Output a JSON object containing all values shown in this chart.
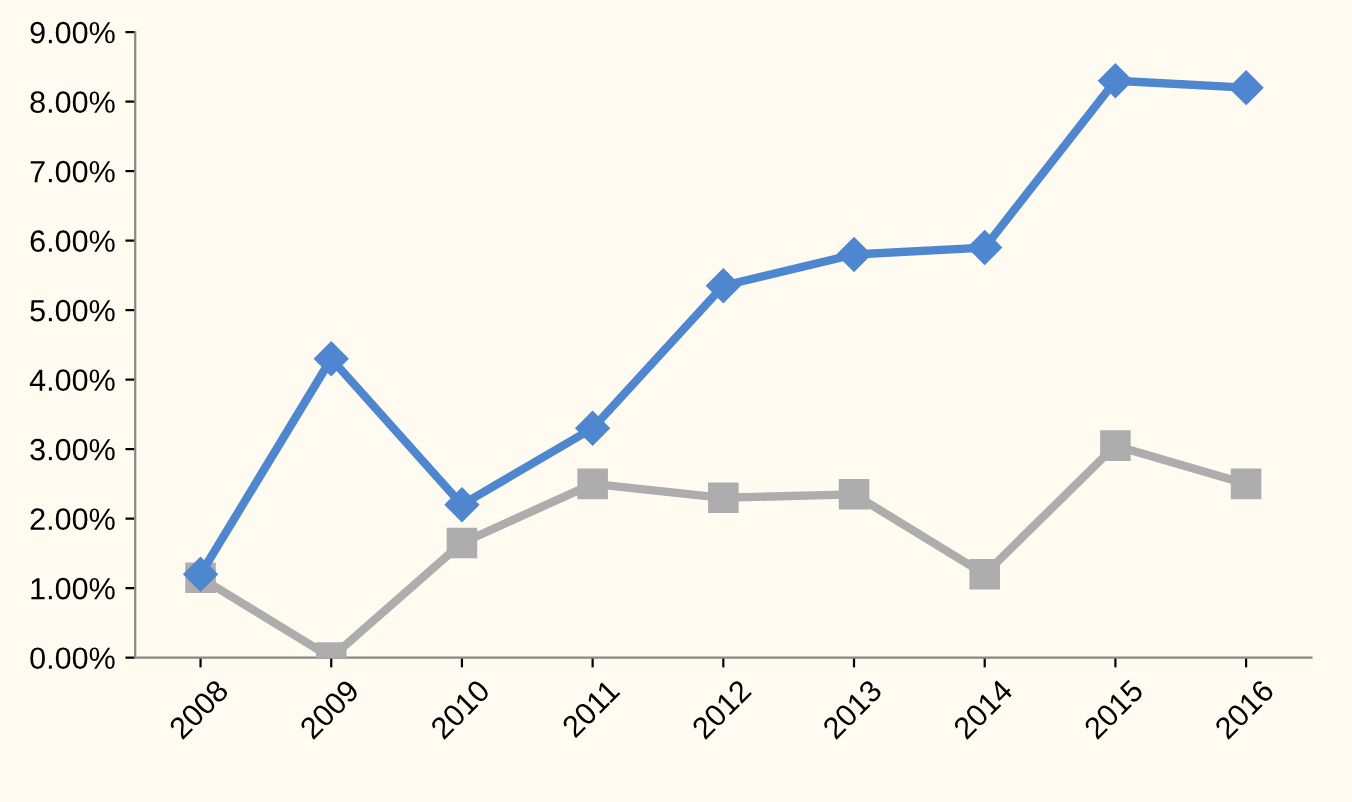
{
  "chart_data": {
    "type": "line",
    "categories": [
      "2008",
      "2009",
      "2010",
      "2011",
      "2012",
      "2013",
      "2014",
      "2015",
      "2016"
    ],
    "series": [
      {
        "color": "#4f86d0",
        "marker": "diamond",
        "values": [
          1.2,
          4.3,
          2.2,
          3.3,
          5.35,
          5.8,
          5.9,
          8.3,
          8.2
        ]
      },
      {
        "color": "#adadad",
        "marker": "square",
        "values": [
          1.15,
          0.0,
          1.65,
          2.5,
          2.3,
          2.35,
          1.2,
          3.05,
          2.5
        ]
      }
    ],
    "ylim": [
      0,
      9
    ],
    "yticks": [
      {
        "value": 0,
        "label": "0.00%"
      },
      {
        "value": 1,
        "label": "1.00%"
      },
      {
        "value": 2,
        "label": "2.00%"
      },
      {
        "value": 3,
        "label": "3.00%"
      },
      {
        "value": 4,
        "label": "4.00%"
      },
      {
        "value": 5,
        "label": "5.00%"
      },
      {
        "value": 6,
        "label": "6.00%"
      },
      {
        "value": 7,
        "label": "7.00%"
      },
      {
        "value": 8,
        "label": "8.00%"
      },
      {
        "value": 9,
        "label": "9.00%"
      }
    ],
    "grid": false,
    "line_style": "solid"
  }
}
